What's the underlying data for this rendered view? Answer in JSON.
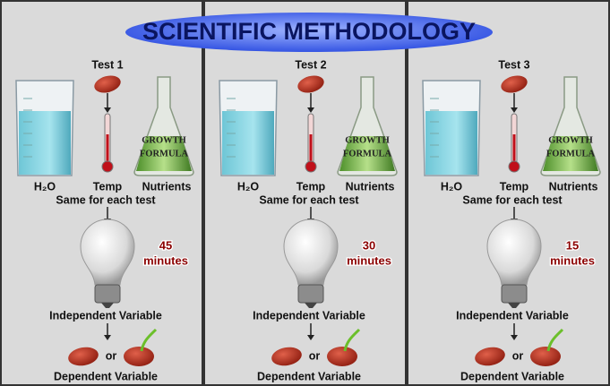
{
  "title": "SCIENTIFIC METHODOLOGY",
  "panels": [
    {
      "test": "Test 1",
      "flask_text": [
        "GROWTH",
        "FORMULA"
      ],
      "labels": [
        "H₂O",
        "Temp",
        "Nutrients"
      ],
      "constant_note": "Same for each test",
      "time": {
        "value": 45,
        "unit": "minutes"
      },
      "independent": "Independent Variable",
      "or": "or",
      "dependent": "Dependent Variable"
    },
    {
      "test": "Test 2",
      "flask_text": [
        "GROWTH",
        "FORMULA"
      ],
      "labels": [
        "H₂O",
        "Temp",
        "Nutrients"
      ],
      "constant_note": "Same for each test",
      "time": {
        "value": 30,
        "unit": "minutes"
      },
      "independent": "Independent Variable",
      "or": "or",
      "dependent": "Dependent Variable"
    },
    {
      "test": "Test 3",
      "flask_text": [
        "GROWTH",
        "FORMULA"
      ],
      "labels": [
        "H₂O",
        "Temp",
        "Nutrients"
      ],
      "constant_note": "Same for each test",
      "time": {
        "value": 15,
        "unit": "minutes"
      },
      "independent": "Independent Variable",
      "or": "or",
      "dependent": "Dependent Variable"
    }
  ]
}
